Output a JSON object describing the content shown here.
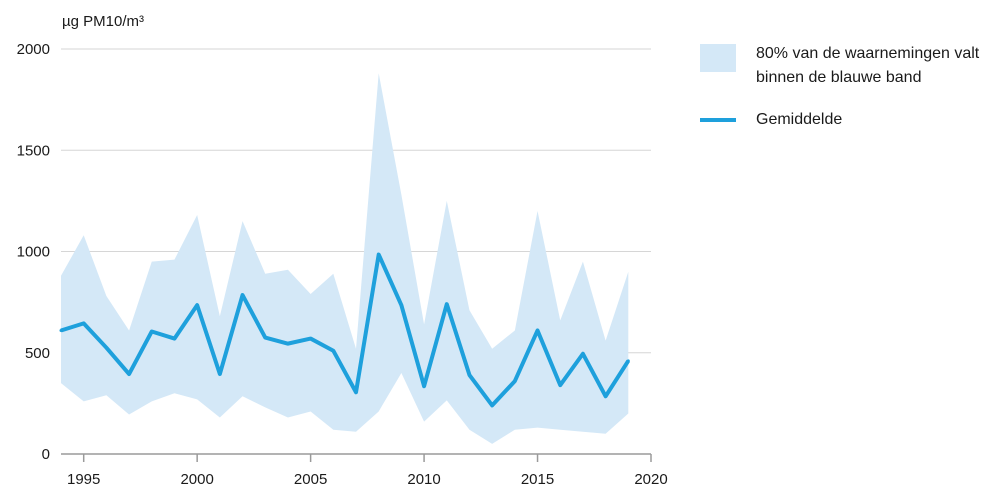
{
  "chart_data": {
    "type": "line",
    "ylabel": "µg PM10/m³",
    "xlim": [
      1994,
      2020
    ],
    "ylim": [
      0,
      2000
    ],
    "x_ticks": [
      1995,
      2000,
      2005,
      2010,
      2015,
      2020
    ],
    "y_ticks": [
      0,
      500,
      1000,
      1500,
      2000
    ],
    "grid": "horizontal",
    "legend_position": "right",
    "x": [
      1994,
      1995,
      1996,
      1997,
      1998,
      1999,
      2000,
      2001,
      2002,
      2003,
      2004,
      2005,
      2006,
      2007,
      2008,
      2009,
      2010,
      2011,
      2012,
      2013,
      2014,
      2015,
      2016,
      2017,
      2018,
      2019
    ],
    "series": [
      {
        "name": "Gemiddelde",
        "type": "line",
        "color": "#1ea0dc",
        "values": [
          610,
          645,
          525,
          395,
          605,
          570,
          735,
          395,
          785,
          575,
          545,
          570,
          510,
          305,
          985,
          735,
          335,
          740,
          390,
          240,
          360,
          610,
          340,
          495,
          285,
          460
        ]
      },
      {
        "name": "80% van de waarnemingen valt binnen de blauwe band",
        "type": "band",
        "color": "#d4e8f7",
        "upper": [
          880,
          1080,
          780,
          610,
          950,
          960,
          1180,
          680,
          1150,
          890,
          910,
          790,
          890,
          520,
          1880,
          1280,
          640,
          1250,
          710,
          520,
          610,
          1200,
          660,
          950,
          560,
          900
        ],
        "lower": [
          350,
          260,
          290,
          195,
          260,
          300,
          270,
          180,
          285,
          230,
          180,
          210,
          120,
          110,
          210,
          400,
          160,
          265,
          120,
          50,
          120,
          130,
          120,
          110,
          100,
          200
        ]
      }
    ]
  },
  "legend": {
    "band_label": "80% van de waarnemingen valt binnen de blauwe band",
    "line_label": "Gemiddelde"
  }
}
